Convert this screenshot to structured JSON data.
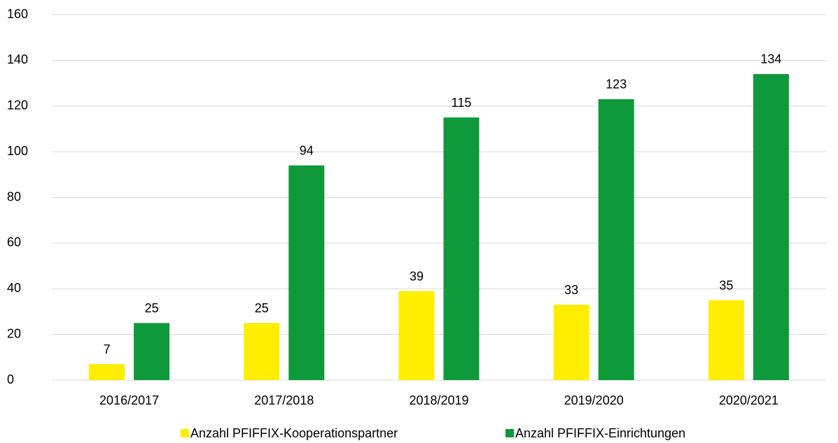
{
  "chart_data": {
    "type": "bar",
    "categories": [
      "2016/2017",
      "2017/2018",
      "2018/2019",
      "2019/2020",
      "2020/2021"
    ],
    "series": [
      {
        "name": "Anzahl PFIFFIX-Kooperationspartner",
        "color": "#ffed00",
        "values": [
          7,
          25,
          39,
          33,
          35
        ]
      },
      {
        "name": "Anzahl PFIFFIX-Einrichtungen",
        "color": "#0e9a3a",
        "values": [
          25,
          94,
          115,
          123,
          134
        ]
      }
    ],
    "ylim": [
      0,
      160
    ],
    "yticks": [
      0,
      20,
      40,
      60,
      80,
      100,
      120,
      140,
      160
    ],
    "grid": true,
    "legend": "bottom"
  }
}
